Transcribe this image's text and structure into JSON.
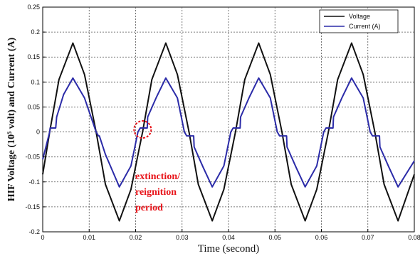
{
  "chart_data": {
    "type": "line",
    "xlabel": "Time (second)",
    "ylabel": "HIF Voltage (10⁵ volt) and Current (A)",
    "xlim": [
      0,
      0.08
    ],
    "ylim": [
      -0.2,
      0.25
    ],
    "x_ticks": [
      0,
      0.01,
      0.02,
      0.03,
      0.04,
      0.05,
      0.06,
      0.07,
      0.08
    ],
    "x_tick_labels": [
      "0",
      "0.01",
      "0.02",
      "0.03",
      "0.04",
      "0.05",
      "0.06",
      "0.07",
      "0.08"
    ],
    "y_ticks": [
      -0.2,
      -0.15,
      -0.1,
      -0.05,
      0,
      0.05,
      0.1,
      0.15,
      0.2,
      0.25
    ],
    "y_tick_labels": [
      "-0.2",
      "-0.15",
      "-0.1",
      "-0.05",
      "0",
      "0.05",
      "0.1",
      "0.15",
      "0.2",
      "0.25"
    ],
    "grid": true,
    "legend_position": "top-right",
    "series": [
      {
        "name": "Voltage",
        "color": "#111111",
        "x": [
          0,
          0.0015,
          0.0035,
          0.0065,
          0.009,
          0.0115,
          0.0135,
          0.0165,
          0.019,
          0.0215,
          0.0235,
          0.0265,
          0.029,
          0.0315,
          0.0335,
          0.0365,
          0.039,
          0.0415,
          0.0435,
          0.0465,
          0.049,
          0.0515,
          0.0535,
          0.0565,
          0.059,
          0.0615,
          0.0635,
          0.0665,
          0.069,
          0.0715,
          0.0735,
          0.0765,
          0.08
        ],
        "y": [
          -0.085,
          0,
          0.105,
          0.178,
          0.115,
          0,
          -0.105,
          -0.178,
          -0.115,
          0,
          0.105,
          0.178,
          0.115,
          0,
          -0.105,
          -0.178,
          -0.115,
          0,
          0.105,
          0.178,
          0.115,
          0,
          -0.105,
          -0.178,
          -0.115,
          0,
          0.105,
          0.178,
          0.115,
          0,
          -0.105,
          -0.178,
          -0.085
        ]
      },
      {
        "name": "Current (A)",
        "color": "#2b2ba8",
        "x": [
          0,
          0.0015,
          0.0016,
          0.0028,
          0.003,
          0.0045,
          0.0065,
          0.009,
          0.0115,
          0.012,
          0.0122,
          0.0135,
          0.0165,
          0.019,
          0.0205,
          0.021,
          0.0212,
          0.0225,
          0.0226,
          0.0245,
          0.0265,
          0.029,
          0.0305,
          0.031,
          0.0312,
          0.0325,
          0.0326,
          0.0345,
          0.0365,
          0.039,
          0.0405,
          0.041,
          0.0412,
          0.0425,
          0.0426,
          0.0445,
          0.0465,
          0.049,
          0.0505,
          0.051,
          0.0512,
          0.0525,
          0.0526,
          0.0545,
          0.0565,
          0.059,
          0.0605,
          0.061,
          0.0612,
          0.0625,
          0.0626,
          0.0645,
          0.0665,
          0.069,
          0.0705,
          0.071,
          0.0712,
          0.0725,
          0.0726,
          0.0745,
          0.0765,
          0.08
        ],
        "y": [
          -0.055,
          0,
          0.008,
          0.008,
          0.03,
          0.075,
          0.108,
          0.068,
          0,
          -0.008,
          -0.008,
          -0.045,
          -0.11,
          -0.068,
          0,
          0.008,
          0.008,
          0.008,
          0.03,
          0.07,
          0.108,
          0.068,
          0,
          -0.008,
          -0.008,
          -0.008,
          -0.03,
          -0.07,
          -0.11,
          -0.068,
          0,
          0.008,
          0.008,
          0.008,
          0.03,
          0.07,
          0.108,
          0.068,
          0,
          -0.008,
          -0.008,
          -0.008,
          -0.03,
          -0.07,
          -0.11,
          -0.068,
          0,
          0.008,
          0.008,
          0.008,
          0.03,
          0.07,
          0.108,
          0.068,
          0,
          -0.008,
          -0.008,
          -0.008,
          -0.03,
          -0.07,
          -0.11,
          -0.058
        ]
      }
    ],
    "annotation": {
      "lines": [
        "extinction/",
        "reignition",
        "period"
      ],
      "color": "#e8141a",
      "at_x": 0.0215,
      "at_y": 0.005
    }
  }
}
